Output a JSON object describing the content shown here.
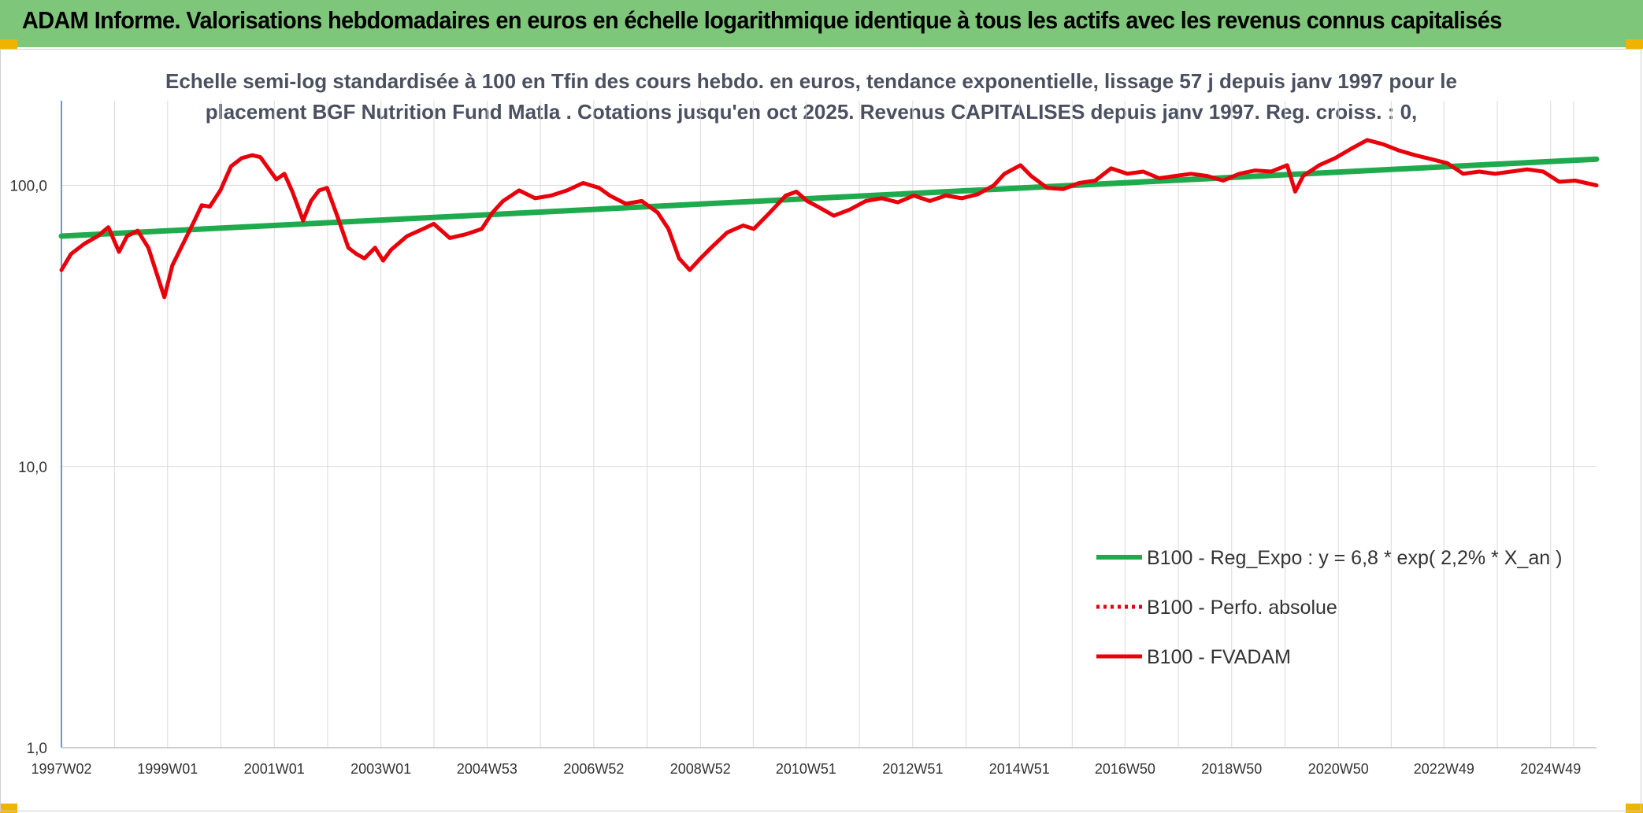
{
  "header": {
    "title": "ADAM Informe. Valorisations hebdomadaires en euros en échelle logarithmique identique à tous les actifs avec les revenus connus capitalisés",
    "background": "#7dc67a",
    "corner_color": "#f0b400"
  },
  "chart_data": {
    "type": "line",
    "title_line1": "Echelle semi-log standardisée à 100 en Tfin des cours hebdo. en euros, tendance exponentielle, lissage 57 j depuis janv 1997 pour le",
    "title_line2": "placement BGF Nutrition Fund Matla . Cotations jusqu'en oct 2025. Revenus CAPITALISES depuis janv 1997. Reg. croiss. : 0,",
    "y_scale": "log",
    "ylim": [
      1,
      200
    ],
    "y_ticks": [
      {
        "value": 1,
        "label": "1,0"
      },
      {
        "value": 10,
        "label": "10,0"
      },
      {
        "value": 100,
        "label": "100,0"
      }
    ],
    "xlim": [
      1997.02,
      2025.8
    ],
    "x_ticks": [
      {
        "x": 1997.02,
        "label": "1997W02"
      },
      {
        "x": 1999.01,
        "label": "1999W01"
      },
      {
        "x": 2001.01,
        "label": "2001W01"
      },
      {
        "x": 2003.01,
        "label": "2003W01"
      },
      {
        "x": 2005.0,
        "label": "2004W53"
      },
      {
        "x": 2007.0,
        "label": "2006W52"
      },
      {
        "x": 2009.0,
        "label": "2008W52"
      },
      {
        "x": 2010.98,
        "label": "2010W51"
      },
      {
        "x": 2012.98,
        "label": "2012W51"
      },
      {
        "x": 2014.98,
        "label": "2014W51"
      },
      {
        "x": 2016.96,
        "label": "2016W50"
      },
      {
        "x": 2018.96,
        "label": "2018W50"
      },
      {
        "x": 2020.96,
        "label": "2020W50"
      },
      {
        "x": 2022.94,
        "label": "2022W49"
      },
      {
        "x": 2024.94,
        "label": "2024W49"
      }
    ],
    "grid": true,
    "legend_position": "bottom-right",
    "series": [
      {
        "name": "B100 - Reg_Expo : y = 6,8 * exp( 2,2% *  X_an )",
        "color": "#1faa4d",
        "style": "solid",
        "x": [
          1997.02,
          2025.8
        ],
        "y": [
          66,
          124
        ]
      },
      {
        "name": "B100 - Perfo. absolue",
        "color": "#e8000b",
        "style": "dotted",
        "x": [],
        "y": []
      },
      {
        "name": "B100 - FVADAM",
        "color": "#e8000b",
        "style": "solid",
        "x": [
          1997.02,
          1997.2,
          1997.45,
          1997.7,
          1997.9,
          1998.1,
          1998.25,
          1998.45,
          1998.65,
          1998.8,
          1998.95,
          1999.1,
          1999.3,
          1999.5,
          1999.65,
          1999.8,
          2000.0,
          2000.2,
          2000.4,
          2000.6,
          2000.75,
          2000.9,
          2001.05,
          2001.2,
          2001.35,
          2001.55,
          2001.7,
          2001.85,
          2002.0,
          2002.2,
          2002.4,
          2002.55,
          2002.7,
          2002.9,
          2003.05,
          2003.2,
          2003.5,
          2003.8,
          2004.0,
          2004.3,
          2004.6,
          2004.9,
          2005.1,
          2005.3,
          2005.6,
          2005.9,
          2006.2,
          2006.5,
          2006.8,
          2007.1,
          2007.3,
          2007.6,
          2007.9,
          2008.2,
          2008.4,
          2008.6,
          2008.8,
          2009.0,
          2009.2,
          2009.5,
          2009.8,
          2010.0,
          2010.3,
          2010.6,
          2010.8,
          2011.0,
          2011.2,
          2011.5,
          2011.8,
          2012.1,
          2012.4,
          2012.7,
          2013.0,
          2013.3,
          2013.6,
          2013.9,
          2014.2,
          2014.5,
          2014.7,
          2015.0,
          2015.2,
          2015.5,
          2015.8,
          2016.1,
          2016.4,
          2016.7,
          2017.0,
          2017.3,
          2017.6,
          2017.9,
          2018.2,
          2018.5,
          2018.8,
          2019.1,
          2019.4,
          2019.7,
          2020.0,
          2020.15,
          2020.3,
          2020.6,
          2020.9,
          2021.2,
          2021.5,
          2021.8,
          2022.1,
          2022.4,
          2022.7,
          2023.0,
          2023.3,
          2023.6,
          2023.9,
          2024.2,
          2024.5,
          2024.8,
          2025.1,
          2025.4,
          2025.8
        ],
        "y": [
          50,
          57,
          62,
          66,
          71,
          58,
          66,
          69,
          60,
          49,
          40,
          52,
          62,
          74,
          85,
          84,
          96,
          117,
          125,
          128,
          126,
          115,
          105,
          110,
          95,
          75,
          88,
          96,
          98,
          77,
          60,
          57,
          55,
          60,
          54,
          59,
          66,
          70,
          73,
          65,
          67,
          70,
          80,
          88,
          96,
          90,
          92,
          96,
          102,
          98,
          92,
          86,
          88,
          80,
          70,
          55,
          50,
          55,
          60,
          68,
          72,
          70,
          80,
          92,
          95,
          88,
          84,
          78,
          82,
          88,
          90,
          87,
          92,
          88,
          92,
          90,
          93,
          100,
          110,
          118,
          108,
          98,
          97,
          102,
          104,
          115,
          110,
          112,
          106,
          108,
          110,
          108,
          104,
          110,
          113,
          112,
          118,
          95,
          108,
          118,
          125,
          135,
          145,
          140,
          133,
          128,
          124,
          120,
          110,
          112,
          110,
          112,
          114,
          112,
          103,
          104,
          100
        ]
      }
    ]
  }
}
